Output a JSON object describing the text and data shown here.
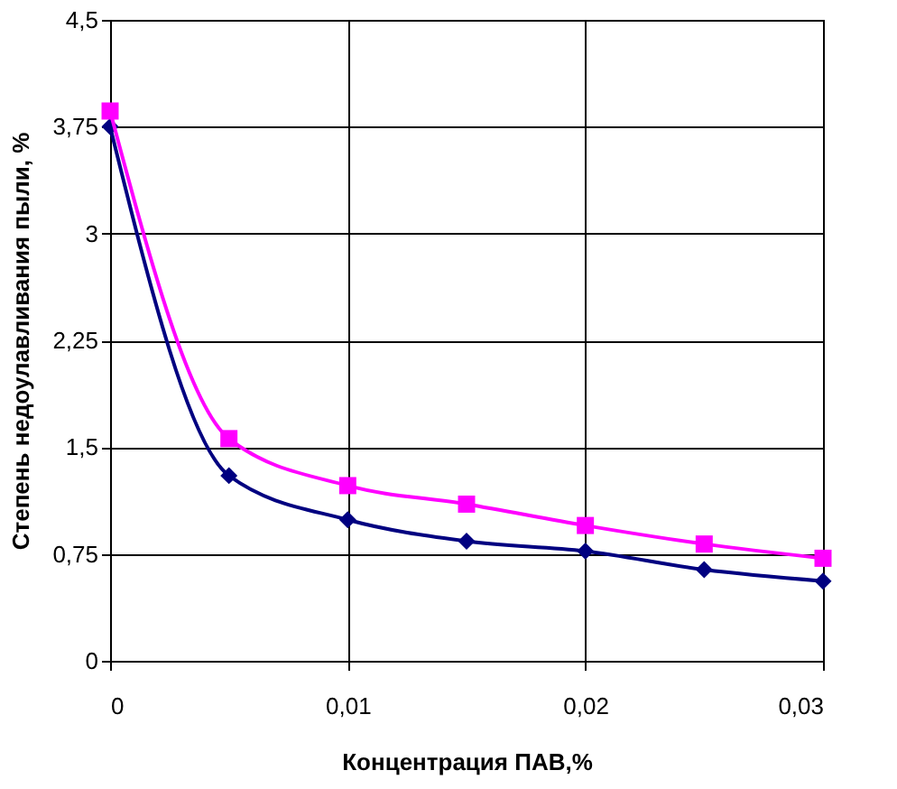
{
  "chart_data": {
    "type": "line",
    "xlabel": "Концентрация ПАВ,%",
    "ylabel": "Степень недоулавливания пыли, %",
    "x": [
      0,
      0.005,
      0.01,
      0.015,
      0.02,
      0.025,
      0.03
    ],
    "series": [
      {
        "color": "#000080",
        "marker": "diamond",
        "values": [
          3.75,
          1.3,
          0.99,
          0.84,
          0.77,
          0.64,
          0.56
        ]
      },
      {
        "color": "#ff00ff",
        "marker": "square",
        "values": [
          3.86,
          1.56,
          1.23,
          1.1,
          0.95,
          0.82,
          0.72
        ]
      }
    ],
    "xlim": [
      0,
      0.03
    ],
    "xticks": [
      0,
      {
        "value": 0.01,
        "label": "0,01"
      },
      {
        "value": 0.02,
        "label": "0,02"
      },
      {
        "value": 0.03,
        "label": "0,03"
      }
    ],
    "ylim": [
      0,
      4.5
    ],
    "yticks": [
      0,
      {
        "value": 0.75,
        "label": "0,75"
      },
      {
        "value": 1.5,
        "label": "1,5"
      },
      {
        "value": 2.25,
        "label": "2,25"
      },
      3,
      {
        "value": 3.75,
        "label": "3,75"
      },
      {
        "value": 4.5,
        "label": "4,5"
      }
    ],
    "grid": true,
    "line_style": "solid"
  }
}
